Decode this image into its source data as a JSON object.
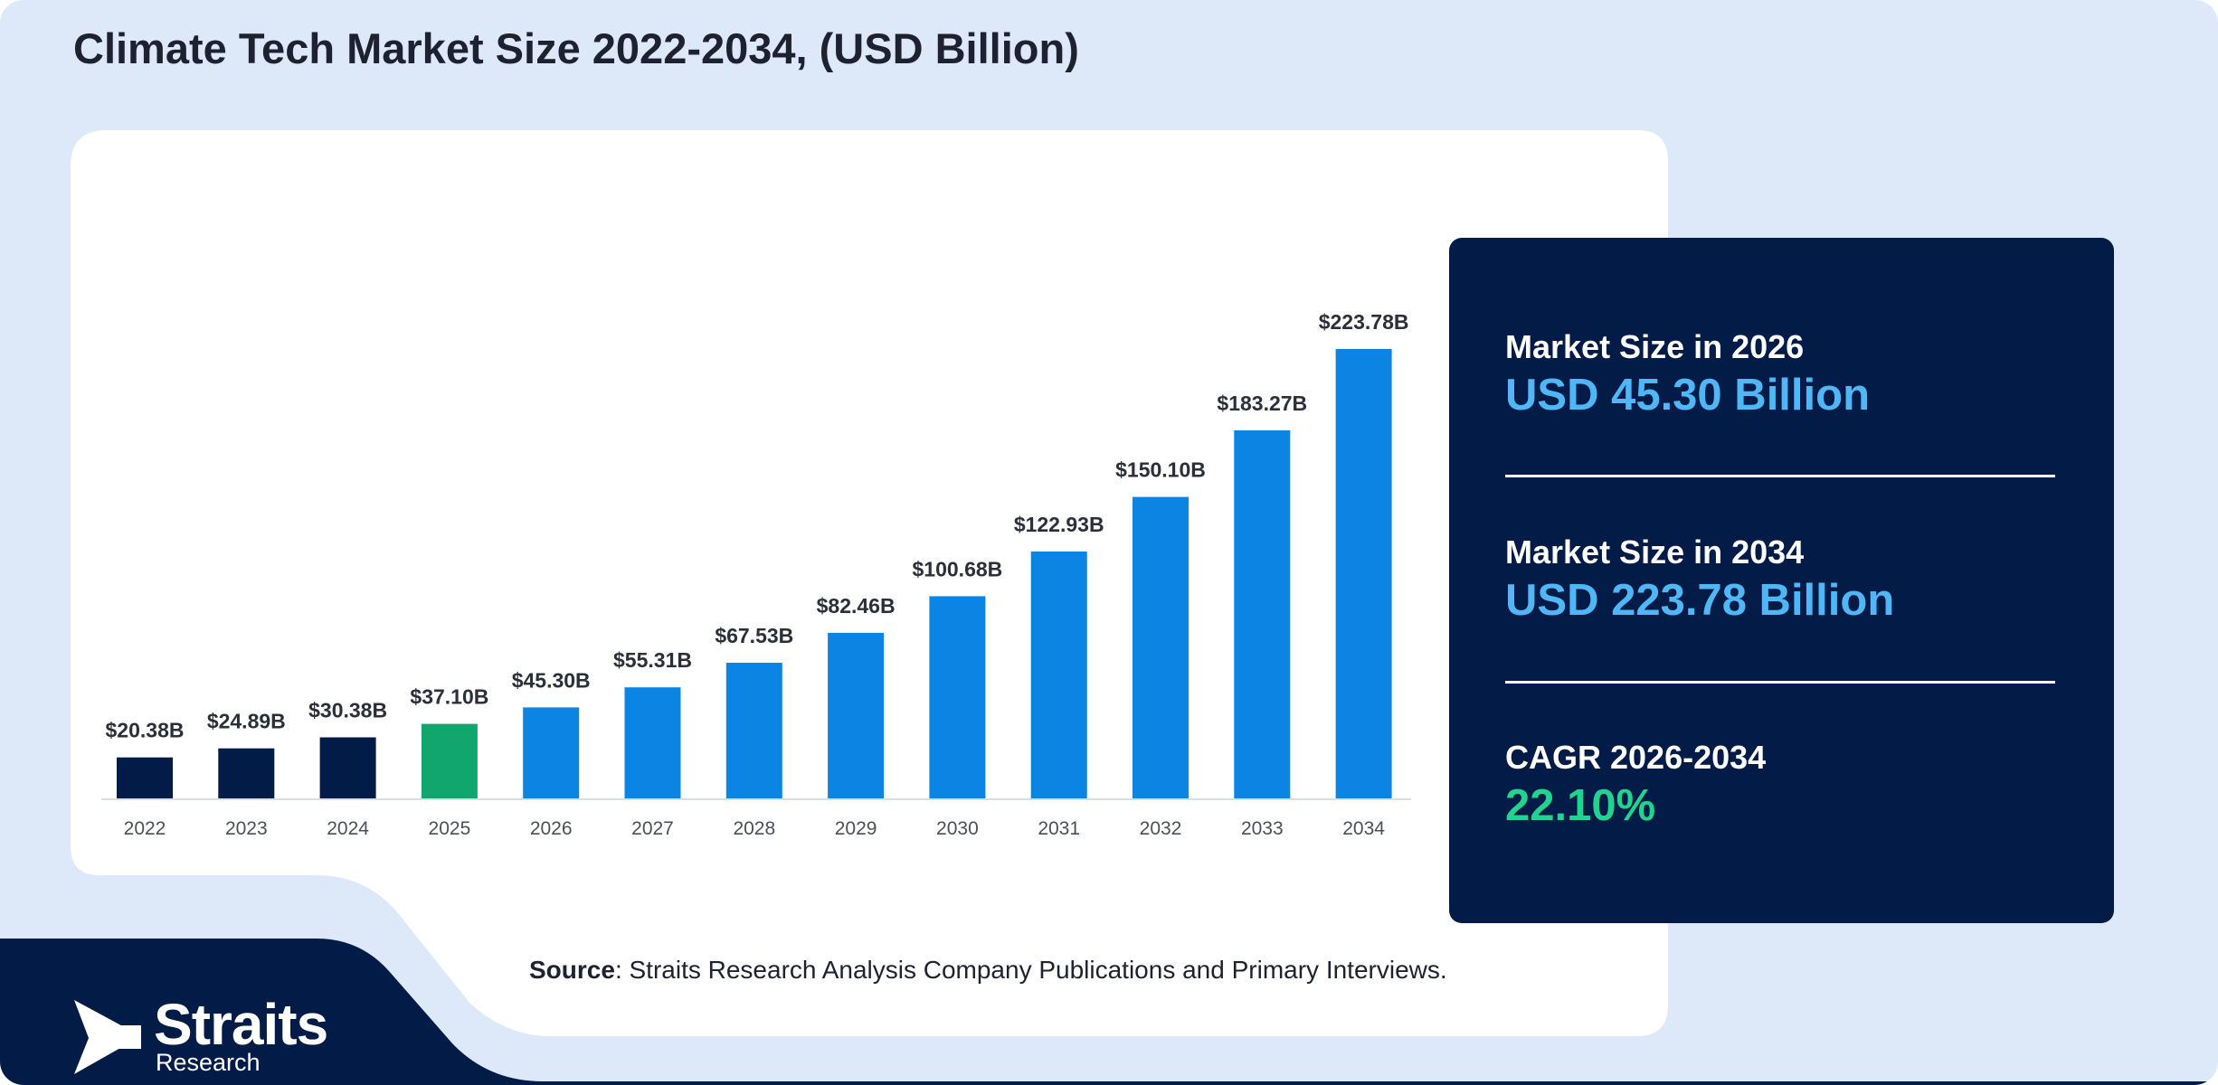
{
  "title": "Climate Tech Market Size 2022-2034, (USD Billion)",
  "colors": {
    "background": "#dde8f9",
    "historic_bar": "#031b47",
    "base_year_bar": "#12a66f",
    "forecast_bar": "#0c84e4",
    "panel": "#031b47",
    "stat_value_blue": "#4fb7f6",
    "stat_value_green": "#21d38f"
  },
  "chart_data": {
    "type": "bar",
    "title": "Climate Tech Market Size 2022-2034, (USD Billion)",
    "xlabel": "",
    "ylabel": "",
    "categories": [
      "2022",
      "2023",
      "2024",
      "2025",
      "2026",
      "2027",
      "2028",
      "2029",
      "2030",
      "2031",
      "2032",
      "2033",
      "2034"
    ],
    "values": [
      20.38,
      24.89,
      30.38,
      37.1,
      45.3,
      55.31,
      67.53,
      82.46,
      100.68,
      122.93,
      150.1,
      183.27,
      223.78
    ],
    "data_labels": [
      "$20.38B",
      "$24.89B",
      "$30.38B",
      "$37.10B",
      "$45.30B",
      "$55.31B",
      "$67.53B",
      "$82.46B",
      "$100.68B",
      "$122.93B",
      "$150.10B",
      "$183.27B",
      "$223.78B"
    ],
    "bar_colors": [
      "#031b47",
      "#031b47",
      "#031b47",
      "#12a66f",
      "#0c84e4",
      "#0c84e4",
      "#0c84e4",
      "#0c84e4",
      "#0c84e4",
      "#0c84e4",
      "#0c84e4",
      "#0c84e4",
      "#0c84e4"
    ],
    "ylim": [
      0,
      223.78
    ],
    "grid": false,
    "legend": "none"
  },
  "stats": [
    {
      "label": "Market Size in 2026",
      "value": "USD 45.30 Billion"
    },
    {
      "label": "Market Size in 2034",
      "value": "USD 223.78 Billion"
    },
    {
      "label": "CAGR 2026-2034",
      "value": "22.10%"
    }
  ],
  "source": {
    "prefix": "Source",
    "text": ": Straits Research Analysis Company Publications and Primary Interviews."
  },
  "logo": {
    "name": "Straits",
    "sub": "Research",
    "icon": "arrow-play-icon"
  }
}
